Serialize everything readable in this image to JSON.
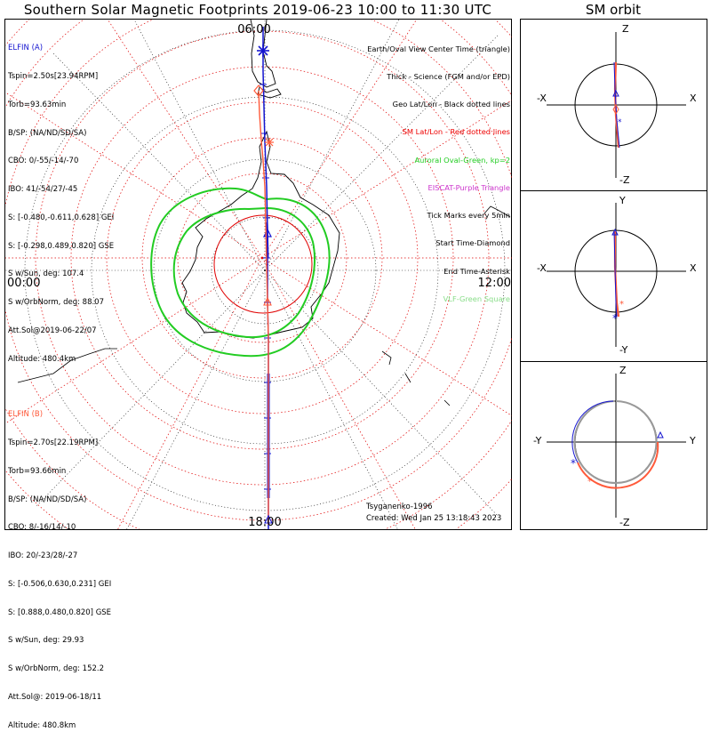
{
  "title": "Southern Solar Magnetic Footprints 2019-06-23 10:00 to 11:30 UTC",
  "sm_orbit_title": "SM orbit",
  "map": {
    "top_time_label": "06:00",
    "left_time_label": "00:00",
    "right_time_label": "12:00",
    "bottom_time_label": "18:00"
  },
  "elfin_a": {
    "name": "ELFIN (A)",
    "color": "#1515d0",
    "lines": [
      "Tspin=2.50s[23.94RPM]",
      "Torb=93.63min",
      "B/SP: (NA/ND/SD/SA)",
      "CBO: 0/-55/-14/-70",
      "IBO: 41/-54/27/-45",
      "S: [-0.480,-0.611,0.628] GEI",
      "S: [-0.298,0.489,0.820] GSE",
      "S w/Sun, deg: 107.4",
      "S w/OrbNorm, deg: 88.07",
      "Att.Sol@2019-06-22/07",
      "Altitude: 480.4km"
    ]
  },
  "elfin_b": {
    "name": "ELFIN (B)",
    "color": "#ff5a3a",
    "lines": [
      "Tspin=2.70s[22.19RPM]",
      "Torb=93.66min",
      "B/SP: (NA/ND/SD/SA)",
      "CBO: 8/-16/14/-10",
      "IBO: 20/-23/28/-27",
      "S: [-0.506,0.630,0.231] GEI",
      "S: [0.888,0.480,0.820] GSE",
      "S w/Sun, deg: 29.93",
      "S w/OrbNorm, deg: 152.2",
      "Att.Sol@: 2019-06-18/11",
      "Altitude: 480.8km"
    ]
  },
  "legend": [
    {
      "text": "Earth/Oval View Center Time (triangle)",
      "color": "#000000"
    },
    {
      "text": "Thick - Science (FGM and/or EPD)",
      "color": "#000000"
    },
    {
      "text": "Geo Lat/Lon - Black dotted lines",
      "color": "#000000"
    },
    {
      "text": "SM Lat/Lon - Red dotted lines",
      "color": "#ee0000"
    },
    {
      "text": "Auroral Oval-Green, kp=2",
      "color": "#22cc22"
    },
    {
      "text": "EISCAT-Purple Triangle",
      "color": "#cc33cc"
    },
    {
      "text": "Tick Marks every 5min",
      "color": "#000000"
    },
    {
      "text": "Start Time-Diamond",
      "color": "#000000"
    },
    {
      "text": "End Time-Asterisk",
      "color": "#000000"
    },
    {
      "text": "VLF-Green Square",
      "color": "#88dd88"
    }
  ],
  "credits": {
    "author": "Tsyganenko-1996",
    "created": "Created: Wed Jan 25 13:18:43 2023"
  },
  "orbit_panels": [
    {
      "top": "Z",
      "bottom": "-Z",
      "left": "-X",
      "right": "X"
    },
    {
      "top": "Y",
      "bottom": "-Y",
      "left": "-X",
      "right": "X"
    },
    {
      "top": "Z",
      "bottom": "-Z",
      "left": "-Y",
      "right": "Y"
    }
  ]
}
